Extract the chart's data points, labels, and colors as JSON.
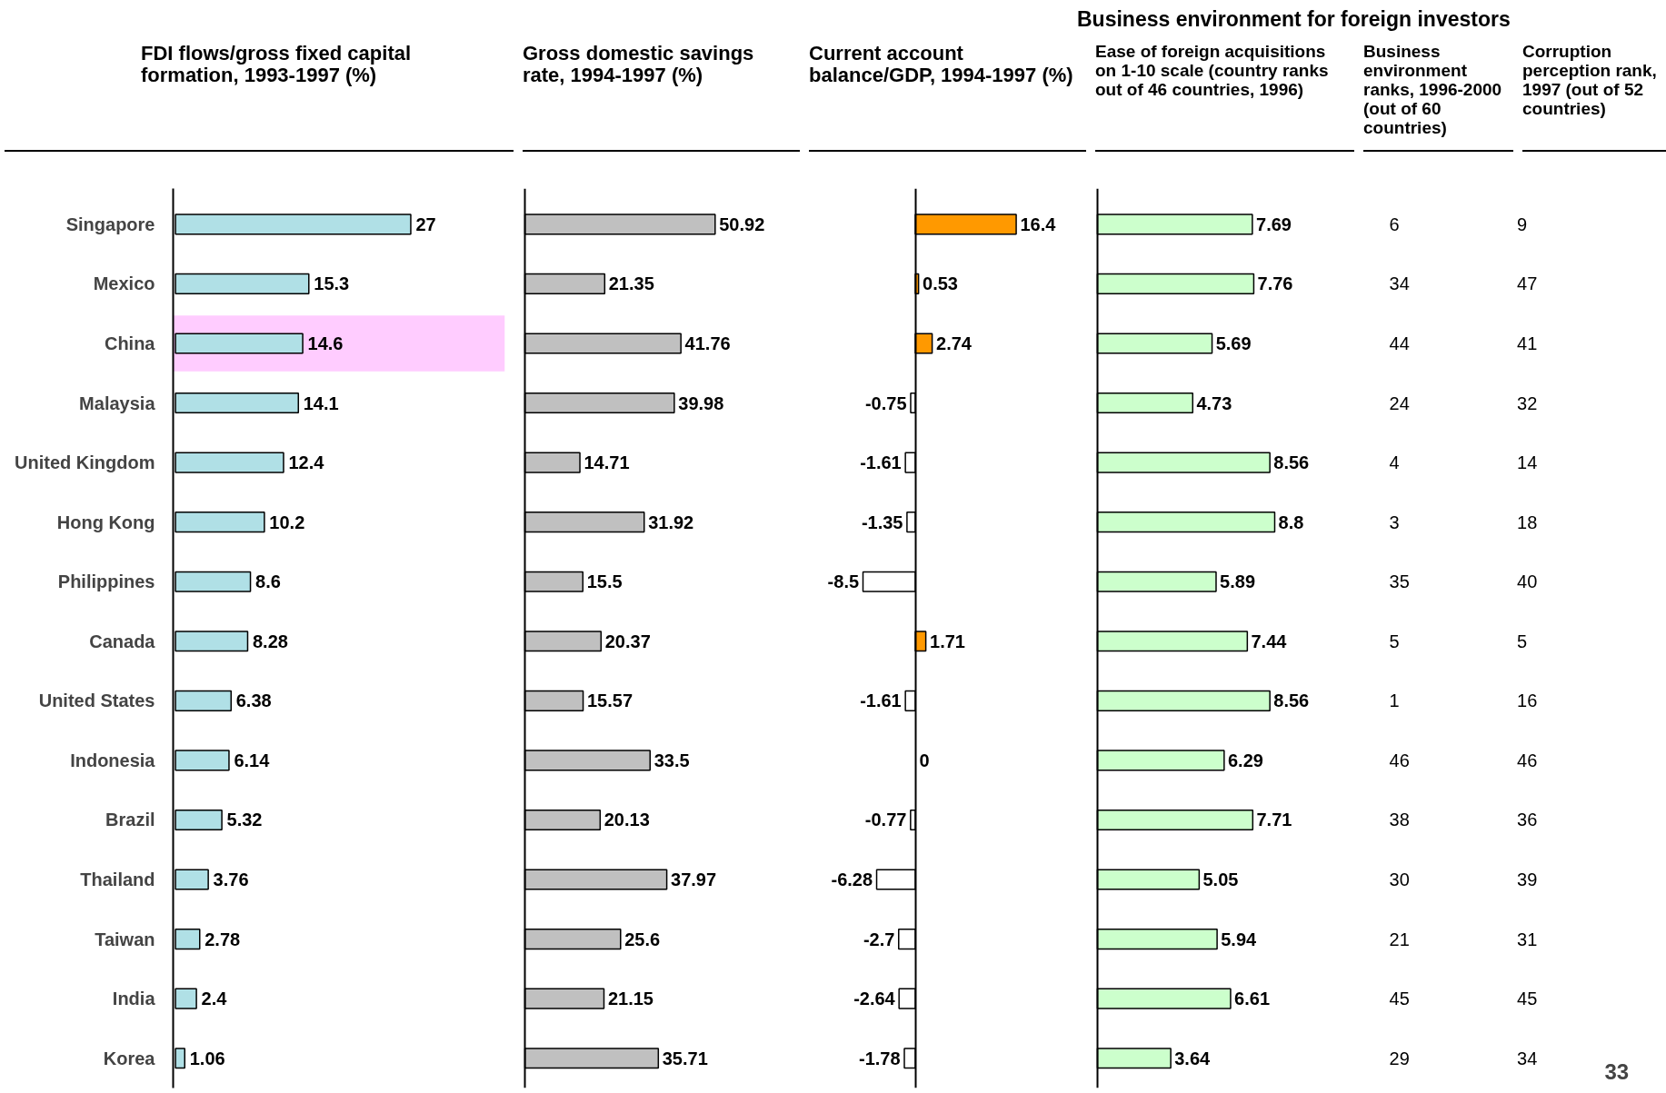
{
  "chart_data": [
    {
      "type": "bar",
      "orientation": "horizontal",
      "title": "FDI flows/gross fixed capital formation, 1993-1997 (%)",
      "categories": [
        "Singapore",
        "Mexico",
        "China",
        "Malaysia",
        "United Kingdom",
        "Hong Kong",
        "Philippines",
        "Canada",
        "United States",
        "Indonesia",
        "Brazil",
        "Thailand",
        "Taiwan",
        "India",
        "Korea"
      ],
      "values": [
        27,
        15.3,
        14.6,
        14.1,
        12.4,
        10.2,
        8.6,
        8.28,
        6.38,
        6.14,
        5.32,
        3.76,
        2.78,
        2.4,
        1.06
      ],
      "color": "#b0e0e6",
      "data_labels": true,
      "tick_labels": "y",
      "bands": [
        {
          "axis": "y",
          "from": "China",
          "to": "China",
          "color": "#ffccff"
        }
      ]
    },
    {
      "type": "bar",
      "orientation": "horizontal",
      "title": "Gross domestic savings rate, 1994-1997 (%)",
      "categories": [
        null,
        null,
        null,
        null,
        null,
        null,
        null,
        null,
        null,
        null,
        null,
        null,
        null,
        null,
        null
      ],
      "values": [
        50.92,
        21.35,
        41.76,
        39.98,
        14.71,
        31.92,
        15.5,
        20.37,
        15.57,
        33.5,
        20.13,
        37.97,
        25.6,
        21.15,
        35.71
      ],
      "color": "#c0c0c0",
      "data_labels": true,
      "tick_labels": false
    },
    {
      "type": "bar",
      "orientation": "horizontal",
      "title": "Current account balance/GDP, 1994-1997 (%)",
      "categories": [
        null,
        null,
        null,
        null,
        null,
        null,
        null,
        null,
        null,
        null,
        null,
        null,
        null,
        null,
        null
      ],
      "values": [
        16.4,
        0.53,
        2.74,
        -0.75,
        -1.61,
        -1.35,
        -8.5,
        1.71,
        -1.61,
        0,
        -0.77,
        -6.28,
        -2.7,
        -2.64,
        -1.78
      ],
      "colors": [
        "#ff9900",
        "#ff9900",
        "#ff9900",
        "#ffffff",
        "#ffffff",
        "#ffffff",
        "#ffffff",
        "#ff9900",
        "#ffffff",
        "#ffffff",
        "#ffffff",
        "#ffffff",
        "#ffffff",
        "#ffffff",
        "#ffffff"
      ],
      "data_labels": true,
      "tick_labels": false
    },
    {
      "type": "bar",
      "orientation": "horizontal",
      "title": "Ease of foreign acquisitions on 1-10 scale (country ranks out of 46 countries, 1996)",
      "annotations": [
        "Business environment for foreign investors"
      ],
      "categories": [
        null,
        null,
        null,
        null,
        null,
        null,
        null,
        null,
        null,
        null,
        null,
        null,
        null,
        null,
        null
      ],
      "values": [
        7.69,
        7.76,
        5.69,
        4.73,
        8.56,
        8.8,
        5.89,
        7.44,
        8.56,
        6.29,
        7.71,
        5.05,
        5.94,
        6.61,
        3.64
      ],
      "color": "#ccffcc",
      "data_labels": true,
      "tick_labels": false
    },
    {
      "type": "heatmap",
      "categories": [
        "Business environment ranks, 1996-2000 (out of 60 countries)",
        "Corruption perception rank, 1997 (out of 52 countries)"
      ],
      "y_categories": [
        null,
        null,
        null,
        null,
        null,
        null,
        null,
        null,
        null,
        null,
        null,
        null,
        null,
        null,
        null
      ],
      "data_labels": true,
      "cells": [
        [
          6,
          9
        ],
        [
          34,
          47
        ],
        [
          44,
          41
        ],
        [
          24,
          32
        ],
        [
          4,
          14
        ],
        [
          3,
          18
        ],
        [
          35,
          40
        ],
        [
          5,
          5
        ],
        [
          1,
          16
        ],
        [
          46,
          46
        ],
        [
          38,
          36
        ],
        [
          30,
          39
        ],
        [
          21,
          31
        ],
        [
          45,
          45
        ],
        [
          29,
          34
        ]
      ],
      "annotations": [
        "33"
      ]
    }
  ]
}
